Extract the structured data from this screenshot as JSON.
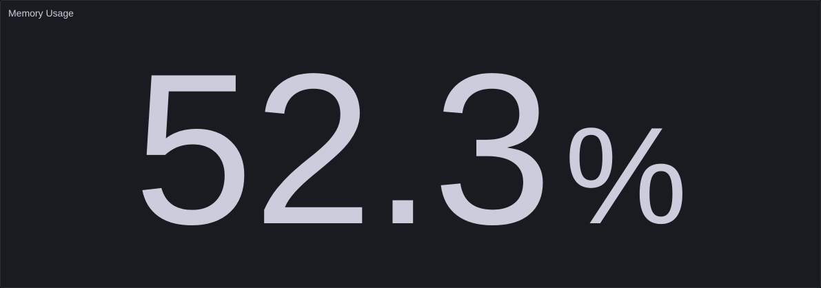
{
  "panel": {
    "title": "Memory Usage",
    "value": "52.3",
    "unit": "%"
  },
  "colors": {
    "background": "#181b1f",
    "text": "#ccccdc",
    "border": "#2a2d33"
  }
}
